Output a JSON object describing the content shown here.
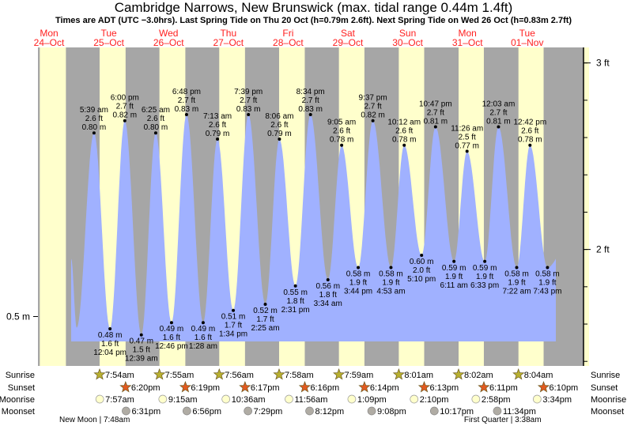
{
  "chart_data": {
    "type": "area",
    "title": "Cambridge Narrows, New Brunswick (max. tidal range 0.44m 1.4ft)",
    "subtitle": "Times are ADT (UTC −3.0hrs). Last Spring Tide on Thu 20 Oct (h=0.79m 2.6ft). Next Spring Tide on Wed 26 Oct (h=0.83m 2.7ft)",
    "days": [
      {
        "dow": "Mon",
        "date": "24–Oct"
      },
      {
        "dow": "Tue",
        "date": "25–Oct"
      },
      {
        "dow": "Wed",
        "date": "26–Oct"
      },
      {
        "dow": "Thu",
        "date": "27–Oct"
      },
      {
        "dow": "Fri",
        "date": "28–Oct"
      },
      {
        "dow": "Sat",
        "date": "29–Oct"
      },
      {
        "dow": "Sun",
        "date": "30–Oct"
      },
      {
        "dow": "Mon",
        "date": "31–Oct"
      },
      {
        "dow": "Tue",
        "date": "01–Nov"
      }
    ],
    "right_axis": {
      "unit": "ft",
      "ticks": [
        {
          "v": 3,
          "label": "3 ft"
        },
        {
          "v": 2,
          "label": "2 ft"
        }
      ],
      "minor_step": 0.2
    },
    "left_axis": {
      "unit": "m",
      "ticks": [
        {
          "v": 0.5,
          "label": "0.5 m"
        }
      ]
    },
    "tides": [
      {
        "day": 1,
        "time": "5:39 am",
        "h": 5.65,
        "type": "high",
        "m": "0.80 m",
        "ft": "2.6 ft"
      },
      {
        "day": 1,
        "time": "12:04 pm",
        "h": 12.07,
        "type": "low",
        "m": "0.48 m",
        "ft": "1.6 ft"
      },
      {
        "day": 1,
        "time": "6:00 pm",
        "h": 18.0,
        "type": "high",
        "m": "0.82 m",
        "ft": "2.7 ft"
      },
      {
        "day": 2,
        "time": "12:39 am",
        "h": 0.65,
        "type": "low",
        "m": "0.47 m",
        "ft": "1.5 ft"
      },
      {
        "day": 2,
        "time": "6:25 am",
        "h": 6.42,
        "type": "high",
        "m": "0.80 m",
        "ft": "2.6 ft"
      },
      {
        "day": 2,
        "time": "12:46 pm",
        "h": 12.77,
        "type": "low",
        "m": "0.49 m",
        "ft": "1.6 ft"
      },
      {
        "day": 2,
        "time": "6:48 pm",
        "h": 18.8,
        "type": "high",
        "m": "0.83 m",
        "ft": "2.7 ft"
      },
      {
        "day": 3,
        "time": "1:28 am",
        "h": 1.47,
        "type": "low",
        "m": "0.49 m",
        "ft": "1.6 ft"
      },
      {
        "day": 3,
        "time": "7:13 am",
        "h": 7.22,
        "type": "high",
        "m": "0.79 m",
        "ft": "2.6 ft"
      },
      {
        "day": 3,
        "time": "1:34 pm",
        "h": 13.57,
        "type": "low",
        "m": "0.51 m",
        "ft": "1.7 ft"
      },
      {
        "day": 3,
        "time": "7:39 pm",
        "h": 19.65,
        "type": "high",
        "m": "0.83 m",
        "ft": "2.7 ft"
      },
      {
        "day": 4,
        "time": "2:25 am",
        "h": 2.42,
        "type": "low",
        "m": "0.52 m",
        "ft": "1.7 ft"
      },
      {
        "day": 4,
        "time": "8:06 am",
        "h": 8.1,
        "type": "high",
        "m": "0.79 m",
        "ft": "2.6 ft"
      },
      {
        "day": 4,
        "time": "2:31 pm",
        "h": 14.52,
        "type": "low",
        "m": "0.55 m",
        "ft": "1.8 ft"
      },
      {
        "day": 4,
        "time": "8:34 pm",
        "h": 20.57,
        "type": "high",
        "m": "0.83 m",
        "ft": "2.7 ft"
      },
      {
        "day": 5,
        "time": "3:34 am",
        "h": 3.57,
        "type": "low",
        "m": "0.56 m",
        "ft": "1.8 ft"
      },
      {
        "day": 5,
        "time": "9:05 am",
        "h": 9.08,
        "type": "high",
        "m": "0.78 m",
        "ft": "2.6 ft"
      },
      {
        "day": 5,
        "time": "3:44 pm",
        "h": 15.73,
        "type": "low",
        "m": "0.58 m",
        "ft": "1.9 ft"
      },
      {
        "day": 5,
        "time": "9:37 pm",
        "h": 21.62,
        "type": "high",
        "m": "0.82 m",
        "ft": "2.7 ft"
      },
      {
        "day": 6,
        "time": "4:53 am",
        "h": 4.88,
        "type": "low",
        "m": "0.58 m",
        "ft": "1.9 ft"
      },
      {
        "day": 6,
        "time": "10:12 am",
        "h": 10.2,
        "type": "high",
        "m": "0.78 m",
        "ft": "2.6 ft"
      },
      {
        "day": 6,
        "time": "5:10 pm",
        "h": 17.17,
        "type": "low",
        "m": "0.60 m",
        "ft": "2.0 ft"
      },
      {
        "day": 6,
        "time": "10:47 pm",
        "h": 22.78,
        "type": "high",
        "m": "0.81 m",
        "ft": "2.7 ft"
      },
      {
        "day": 7,
        "time": "6:11 am",
        "h": 6.18,
        "type": "low",
        "m": "0.59 m",
        "ft": "1.9 ft"
      },
      {
        "day": 7,
        "time": "11:26 am",
        "h": 11.43,
        "type": "high",
        "m": "0.77 m",
        "ft": "2.5 ft"
      },
      {
        "day": 7,
        "time": "6:33 pm",
        "h": 18.55,
        "type": "low",
        "m": "0.59 m",
        "ft": "1.9 ft"
      },
      {
        "day": 8,
        "time": "12:03 am",
        "h": 0.05,
        "type": "high",
        "m": "0.81 m",
        "ft": "2.7 ft"
      },
      {
        "day": 8,
        "time": "7:22 am",
        "h": 7.37,
        "type": "low",
        "m": "0.58 m",
        "ft": "1.9 ft"
      },
      {
        "day": 8,
        "time": "12:42 pm",
        "h": 12.7,
        "type": "high",
        "m": "0.78 m",
        "ft": "2.6 ft"
      },
      {
        "day": 8,
        "time": "7:43 pm",
        "h": 19.72,
        "type": "low",
        "m": "0.58 m",
        "ft": "1.9 ft"
      }
    ],
    "row_labels": {
      "sunrise": "Sunrise",
      "sunset": "Sunset",
      "moonrise": "Moonrise",
      "moonset": "Moonset"
    },
    "sunrise": [
      {
        "day": 1,
        "time": "7:54am",
        "h": 7.9
      },
      {
        "day": 2,
        "time": "7:55am",
        "h": 7.92
      },
      {
        "day": 3,
        "time": "7:56am",
        "h": 7.93
      },
      {
        "day": 4,
        "time": "7:58am",
        "h": 7.97
      },
      {
        "day": 5,
        "time": "7:59am",
        "h": 7.98
      },
      {
        "day": 6,
        "time": "8:01am",
        "h": 8.02
      },
      {
        "day": 7,
        "time": "8:02am",
        "h": 8.03
      },
      {
        "day": 8,
        "time": "8:04am",
        "h": 8.07
      }
    ],
    "sunset": [
      {
        "day": 1,
        "time": "6:20pm",
        "h": 18.33
      },
      {
        "day": 2,
        "time": "6:19pm",
        "h": 18.32
      },
      {
        "day": 3,
        "time": "6:17pm",
        "h": 18.28
      },
      {
        "day": 4,
        "time": "6:16pm",
        "h": 18.27
      },
      {
        "day": 5,
        "time": "6:14pm",
        "h": 18.23
      },
      {
        "day": 6,
        "time": "6:13pm",
        "h": 18.22
      },
      {
        "day": 7,
        "time": "6:11pm",
        "h": 18.18
      },
      {
        "day": 8,
        "time": "6:10pm",
        "h": 18.17
      }
    ],
    "moonrise": [
      {
        "day": 1,
        "time": "7:57am",
        "h": 7.95
      },
      {
        "day": 2,
        "time": "9:15am",
        "h": 9.25
      },
      {
        "day": 3,
        "time": "10:36am",
        "h": 10.6
      },
      {
        "day": 4,
        "time": "11:56am",
        "h": 11.93
      },
      {
        "day": 5,
        "time": "1:09pm",
        "h": 13.15
      },
      {
        "day": 6,
        "time": "2:10pm",
        "h": 14.17
      },
      {
        "day": 7,
        "time": "2:58pm",
        "h": 14.97
      },
      {
        "day": 8,
        "time": "3:34pm",
        "h": 15.57
      }
    ],
    "moonset": [
      {
        "day": 1,
        "time": "6:31pm",
        "h": 18.52
      },
      {
        "day": 2,
        "time": "6:56pm",
        "h": 18.93
      },
      {
        "day": 3,
        "time": "7:29pm",
        "h": 19.48
      },
      {
        "day": 4,
        "time": "8:12pm",
        "h": 20.2
      },
      {
        "day": 5,
        "time": "9:08pm",
        "h": 21.13
      },
      {
        "day": 6,
        "time": "10:17pm",
        "h": 22.28
      },
      {
        "day": 7,
        "time": "11:34pm",
        "h": 23.57
      }
    ],
    "moon_phases": [
      {
        "day": 1,
        "h": 7.8,
        "label": "New Moon | 7:48am"
      },
      {
        "day": 8,
        "h": 3.63,
        "label": "First Quarter | 3:38am"
      }
    ],
    "colors": {
      "night": "#a6a6a6",
      "day": "#ffffcc",
      "water": "#a0b1ff",
      "day_label": "#ff2020",
      "sunrise": "#b8b030",
      "sunset": "#e05a20",
      "moonrise": "#ffffcc",
      "moonset": "#b0aca4"
    }
  }
}
